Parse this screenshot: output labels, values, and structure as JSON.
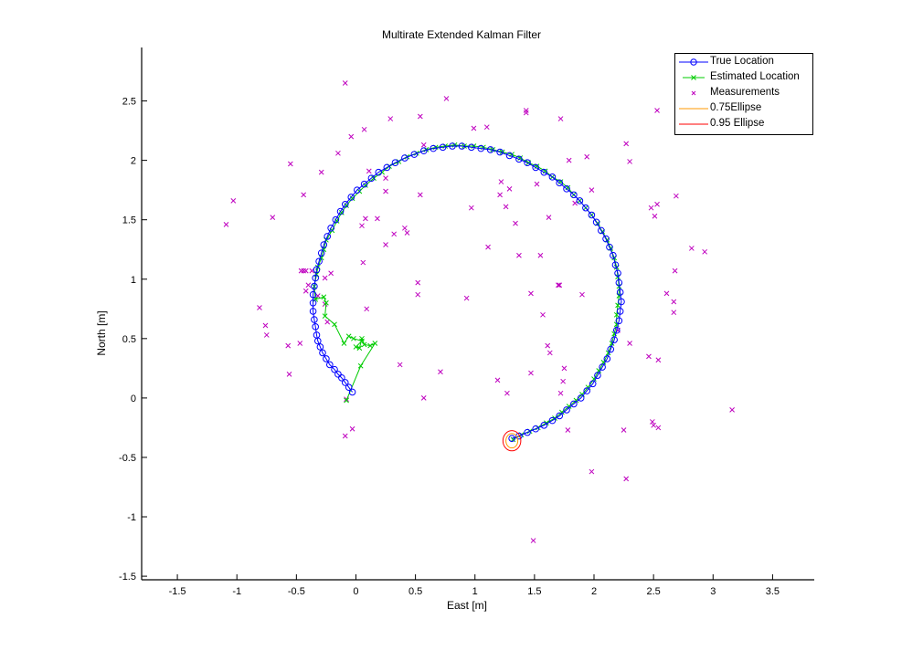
{
  "chart_data": {
    "type": "scatter",
    "title": "Multirate Extended Kalman Filter",
    "xlabel": "East [m]",
    "ylabel": "North [m]",
    "xlim": [
      -1.8,
      3.85
    ],
    "ylim": [
      -1.53,
      2.95
    ],
    "xticks": [
      -1.5,
      -1,
      -0.5,
      0,
      0.5,
      1,
      1.5,
      2,
      2.5,
      3,
      3.5
    ],
    "xtick_labels": [
      "-1.5",
      "-1",
      "-0.5",
      "0",
      "0.5",
      "1",
      "1.5",
      "2",
      "2.5",
      "3",
      "3.5"
    ],
    "yticks": [
      -1.5,
      -1,
      -0.5,
      0,
      0.5,
      1,
      1.5,
      2,
      2.5
    ],
    "ytick_labels": [
      "-1.5",
      "-1",
      "-0.5",
      "0",
      "0.5",
      "1",
      "1.5",
      "2",
      "2.5"
    ],
    "grid": false,
    "legend_position": "upper right",
    "legend": [
      "True Location",
      "Estimated Location",
      "Measurements",
      "0.75Ellipse",
      "0.95 Ellipse"
    ],
    "colors": {
      "true": "#0000ff",
      "estimated": "#00cc00",
      "measurements": "#bf00bf",
      "ellipse75": "#ff9900",
      "ellipse95": "#ff0000"
    },
    "series": [
      {
        "name": "True Location",
        "style": "line-circle",
        "points": [
          [
            -0.03,
            0.05
          ],
          [
            -0.06,
            0.09
          ],
          [
            -0.09,
            0.13
          ],
          [
            -0.12,
            0.17
          ],
          [
            -0.15,
            0.2
          ],
          [
            -0.18,
            0.24
          ],
          [
            -0.22,
            0.28
          ],
          [
            -0.25,
            0.33
          ],
          [
            -0.28,
            0.38
          ],
          [
            -0.3,
            0.43
          ],
          [
            -0.32,
            0.48
          ],
          [
            -0.33,
            0.53
          ],
          [
            -0.34,
            0.6
          ],
          [
            -0.35,
            0.66
          ],
          [
            -0.36,
            0.73
          ],
          [
            -0.36,
            0.8
          ],
          [
            -0.36,
            0.87
          ],
          [
            -0.35,
            0.94
          ],
          [
            -0.34,
            1.01
          ],
          [
            -0.33,
            1.08
          ],
          [
            -0.31,
            1.15
          ],
          [
            -0.29,
            1.22
          ],
          [
            -0.27,
            1.29
          ],
          [
            -0.24,
            1.36
          ],
          [
            -0.21,
            1.43
          ],
          [
            -0.17,
            1.5
          ],
          [
            -0.13,
            1.57
          ],
          [
            -0.09,
            1.63
          ],
          [
            -0.04,
            1.69
          ],
          [
            0.01,
            1.75
          ],
          [
            0.07,
            1.8
          ],
          [
            0.13,
            1.85
          ],
          [
            0.19,
            1.9
          ],
          [
            0.26,
            1.94
          ],
          [
            0.33,
            1.98
          ],
          [
            0.41,
            2.02
          ],
          [
            0.49,
            2.05
          ],
          [
            0.57,
            2.08
          ],
          [
            0.65,
            2.1
          ],
          [
            0.73,
            2.11
          ],
          [
            0.81,
            2.12
          ],
          [
            0.89,
            2.12
          ],
          [
            0.97,
            2.11
          ],
          [
            1.05,
            2.1
          ],
          [
            1.13,
            2.09
          ],
          [
            1.21,
            2.07
          ],
          [
            1.29,
            2.04
          ],
          [
            1.37,
            2.01
          ],
          [
            1.44,
            1.98
          ],
          [
            1.51,
            1.94
          ],
          [
            1.58,
            1.9
          ],
          [
            1.65,
            1.86
          ],
          [
            1.71,
            1.81
          ],
          [
            1.77,
            1.76
          ],
          [
            1.83,
            1.71
          ],
          [
            1.88,
            1.66
          ],
          [
            1.93,
            1.6
          ],
          [
            1.98,
            1.54
          ],
          [
            2.02,
            1.48
          ],
          [
            2.06,
            1.41
          ],
          [
            2.1,
            1.34
          ],
          [
            2.13,
            1.27
          ],
          [
            2.16,
            1.2
          ],
          [
            2.18,
            1.12
          ],
          [
            2.2,
            1.05
          ],
          [
            2.21,
            0.97
          ],
          [
            2.22,
            0.89
          ],
          [
            2.23,
            0.81
          ],
          [
            2.22,
            0.73
          ],
          [
            2.21,
            0.65
          ],
          [
            2.19,
            0.57
          ],
          [
            2.17,
            0.49
          ],
          [
            2.14,
            0.41
          ],
          [
            2.11,
            0.33
          ],
          [
            2.07,
            0.26
          ],
          [
            2.03,
            0.19
          ],
          [
            1.99,
            0.12
          ],
          [
            1.94,
            0.06
          ],
          [
            1.89,
            0.0
          ],
          [
            1.83,
            -0.05
          ],
          [
            1.77,
            -0.1
          ],
          [
            1.71,
            -0.15
          ],
          [
            1.65,
            -0.19
          ],
          [
            1.58,
            -0.23
          ],
          [
            1.51,
            -0.26
          ],
          [
            1.44,
            -0.29
          ],
          [
            1.37,
            -0.32
          ],
          [
            1.31,
            -0.34
          ]
        ]
      },
      {
        "name": "Estimated Location",
        "style": "line-x",
        "points": [
          [
            -0.08,
            -0.02
          ],
          [
            0.04,
            0.27
          ],
          [
            0.16,
            0.46
          ],
          [
            0.12,
            0.44
          ],
          [
            0.07,
            0.45
          ],
          [
            0.05,
            0.5
          ],
          [
            0.03,
            0.42
          ],
          [
            0.0,
            0.43
          ],
          [
            0.05,
            0.48
          ],
          [
            -0.02,
            0.5
          ],
          [
            -0.06,
            0.52
          ],
          [
            -0.1,
            0.46
          ],
          [
            -0.18,
            0.62
          ],
          [
            -0.26,
            0.69
          ],
          [
            -0.25,
            0.8
          ],
          [
            -0.27,
            0.85
          ],
          [
            -0.34,
            0.83
          ],
          [
            -0.35,
            0.94
          ],
          [
            -0.33,
            1.04
          ],
          [
            -0.32,
            1.1
          ],
          [
            -0.29,
            1.18
          ],
          [
            -0.27,
            1.25
          ],
          [
            -0.25,
            1.33
          ],
          [
            -0.2,
            1.41
          ],
          [
            -0.16,
            1.49
          ],
          [
            -0.12,
            1.56
          ],
          [
            -0.08,
            1.62
          ],
          [
            -0.03,
            1.68
          ],
          [
            0.03,
            1.74
          ],
          [
            0.08,
            1.79
          ],
          [
            0.15,
            1.85
          ],
          [
            0.22,
            1.9
          ],
          [
            0.28,
            1.95
          ],
          [
            0.36,
            1.99
          ],
          [
            0.43,
            2.03
          ],
          [
            0.51,
            2.06
          ],
          [
            0.59,
            2.09
          ],
          [
            0.67,
            2.11
          ],
          [
            0.75,
            2.12
          ],
          [
            0.83,
            2.13
          ],
          [
            0.91,
            2.12
          ],
          [
            0.99,
            2.12
          ],
          [
            1.07,
            2.11
          ],
          [
            1.15,
            2.09
          ],
          [
            1.23,
            2.07
          ],
          [
            1.31,
            2.05
          ],
          [
            1.38,
            2.02
          ],
          [
            1.45,
            1.98
          ],
          [
            1.52,
            1.95
          ],
          [
            1.59,
            1.91
          ],
          [
            1.65,
            1.86
          ],
          [
            1.72,
            1.82
          ],
          [
            1.78,
            1.77
          ],
          [
            1.83,
            1.71
          ],
          [
            1.88,
            1.66
          ],
          [
            1.93,
            1.6
          ],
          [
            1.98,
            1.54
          ],
          [
            2.03,
            1.47
          ],
          [
            2.07,
            1.4
          ],
          [
            2.11,
            1.33
          ],
          [
            2.14,
            1.26
          ],
          [
            2.17,
            1.18
          ],
          [
            2.19,
            1.1
          ],
          [
            2.2,
            1.02
          ],
          [
            2.21,
            0.94
          ],
          [
            2.21,
            0.86
          ],
          [
            2.2,
            0.78
          ],
          [
            2.19,
            0.7
          ],
          [
            2.19,
            0.62
          ],
          [
            2.17,
            0.54
          ],
          [
            2.15,
            0.46
          ],
          [
            2.12,
            0.38
          ],
          [
            2.08,
            0.3
          ],
          [
            2.04,
            0.23
          ],
          [
            2.0,
            0.16
          ],
          [
            1.95,
            0.09
          ],
          [
            1.9,
            0.03
          ],
          [
            1.85,
            -0.02
          ],
          [
            1.79,
            -0.07
          ],
          [
            1.73,
            -0.12
          ],
          [
            1.67,
            -0.17
          ],
          [
            1.6,
            -0.21
          ],
          [
            1.53,
            -0.25
          ],
          [
            1.46,
            -0.28
          ],
          [
            1.39,
            -0.31
          ],
          [
            1.32,
            -0.35
          ]
        ]
      },
      {
        "name": "Measurements",
        "style": "x",
        "points": [
          [
            -0.09,
            2.65
          ],
          [
            -0.04,
            2.2
          ],
          [
            0.07,
            2.26
          ],
          [
            0.29,
            2.35
          ],
          [
            0.54,
            2.37
          ],
          [
            0.76,
            2.52
          ],
          [
            0.99,
            2.27
          ],
          [
            1.1,
            2.28
          ],
          [
            1.43,
            2.42
          ],
          [
            1.43,
            2.4
          ],
          [
            1.72,
            2.35
          ],
          [
            2.53,
            2.42
          ],
          [
            -0.15,
            2.06
          ],
          [
            0.11,
            1.91
          ],
          [
            0.25,
            1.85
          ],
          [
            0.57,
            2.13
          ],
          [
            1.22,
            1.82
          ],
          [
            1.29,
            1.76
          ],
          [
            1.52,
            1.8
          ],
          [
            1.79,
            2.0
          ],
          [
            1.94,
            2.03
          ],
          [
            2.3,
            1.99
          ],
          [
            2.27,
            2.14
          ],
          [
            -0.55,
            1.97
          ],
          [
            -0.29,
            1.9
          ],
          [
            -0.44,
            1.71
          ],
          [
            -0.7,
            1.52
          ],
          [
            -1.03,
            1.66
          ],
          [
            -1.09,
            1.46
          ],
          [
            0.08,
            1.51
          ],
          [
            0.25,
            1.74
          ],
          [
            0.32,
            1.38
          ],
          [
            0.41,
            1.43
          ],
          [
            0.43,
            1.39
          ],
          [
            0.54,
            1.71
          ],
          [
            0.97,
            1.6
          ],
          [
            1.21,
            1.71
          ],
          [
            1.26,
            1.61
          ],
          [
            1.34,
            1.47
          ],
          [
            1.62,
            1.52
          ],
          [
            1.84,
            1.64
          ],
          [
            1.98,
            1.75
          ],
          [
            2.48,
            1.6
          ],
          [
            2.53,
            1.63
          ],
          [
            2.51,
            1.53
          ],
          [
            2.69,
            1.7
          ],
          [
            2.82,
            1.26
          ],
          [
            2.93,
            1.23
          ],
          [
            2.68,
            1.07
          ],
          [
            0.05,
            1.45
          ],
          [
            0.18,
            1.51
          ],
          [
            0.06,
            1.14
          ],
          [
            0.25,
            1.29
          ],
          [
            1.11,
            1.27
          ],
          [
            1.37,
            1.2
          ],
          [
            1.55,
            1.2
          ],
          [
            -0.46,
            1.07
          ],
          [
            -0.44,
            1.07
          ],
          [
            -0.42,
            1.07
          ],
          [
            -0.37,
            1.07
          ],
          [
            -0.4,
            0.95
          ],
          [
            -0.42,
            0.9
          ],
          [
            -0.81,
            0.76
          ],
          [
            -0.21,
            1.05
          ],
          [
            -0.26,
            1.01
          ],
          [
            -0.32,
            0.86
          ],
          [
            -0.26,
            0.79
          ],
          [
            -0.24,
            0.64
          ],
          [
            0.52,
            0.97
          ],
          [
            0.52,
            0.87
          ],
          [
            0.93,
            0.84
          ],
          [
            1.47,
            0.88
          ],
          [
            1.7,
            0.95
          ],
          [
            1.71,
            0.95
          ],
          [
            1.9,
            0.87
          ],
          [
            2.61,
            0.88
          ],
          [
            2.67,
            0.81
          ],
          [
            2.67,
            0.72
          ],
          [
            1.57,
            0.7
          ],
          [
            -0.76,
            0.61
          ],
          [
            -0.75,
            0.53
          ],
          [
            -0.57,
            0.44
          ],
          [
            -0.47,
            0.46
          ],
          [
            -0.56,
            0.2
          ],
          [
            0.09,
            0.75
          ],
          [
            2.2,
            0.57
          ],
          [
            2.3,
            0.46
          ],
          [
            1.61,
            0.44
          ],
          [
            1.63,
            0.38
          ],
          [
            1.75,
            0.25
          ],
          [
            1.74,
            0.14
          ],
          [
            1.72,
            0.04
          ],
          [
            2.46,
            0.35
          ],
          [
            2.54,
            0.32
          ],
          [
            0.37,
            0.28
          ],
          [
            0.71,
            0.22
          ],
          [
            1.19,
            0.15
          ],
          [
            1.27,
            0.04
          ],
          [
            1.47,
            0.21
          ],
          [
            0.57,
            0.0
          ],
          [
            -0.08,
            -0.01
          ],
          [
            -0.03,
            -0.26
          ],
          [
            -0.09,
            -0.32
          ],
          [
            1.78,
            -0.27
          ],
          [
            2.49,
            -0.2
          ],
          [
            2.5,
            -0.23
          ],
          [
            2.54,
            -0.25
          ],
          [
            2.25,
            -0.27
          ],
          [
            3.16,
            -0.1
          ],
          [
            1.98,
            -0.62
          ],
          [
            2.27,
            -0.68
          ],
          [
            1.49,
            -1.2
          ]
        ]
      },
      {
        "name": "0.75Ellipse",
        "style": "ellipse",
        "center": [
          1.31,
          -0.36
        ],
        "radii": [
          0.05,
          0.06
        ]
      },
      {
        "name": "0.95 Ellipse",
        "style": "ellipse",
        "center": [
          1.31,
          -0.36
        ],
        "radii": [
          0.075,
          0.085
        ]
      }
    ]
  },
  "legend_items": [
    {
      "label": "True Location"
    },
    {
      "label": "Estimated Location"
    },
    {
      "label": "Measurements"
    },
    {
      "label": "0.75Ellipse"
    },
    {
      "label": "0.95 Ellipse"
    }
  ]
}
